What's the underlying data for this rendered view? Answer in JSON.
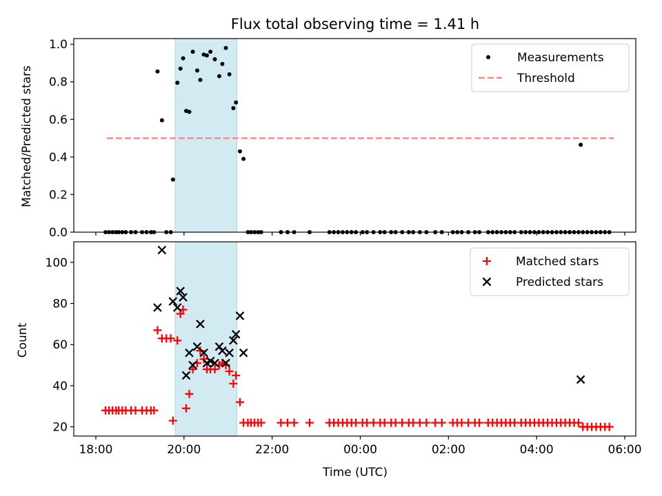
{
  "chart_data": [
    {
      "type": "scatter",
      "title": "Flux total observing time = 1.41 h",
      "xlabel": "",
      "ylabel": "Matched/Predicted stars",
      "xlim": [
        17.5,
        30.25
      ],
      "ylim": [
        0,
        1.03
      ],
      "yticks": [
        0,
        0.2,
        0.4,
        0.6,
        0.8,
        1.0
      ],
      "ytick_labels": [
        "0.0",
        "0.2",
        "0.4",
        "0.6",
        "0.8",
        "1.0"
      ],
      "highlight_span": [
        19.8,
        21.2
      ],
      "highlight_color": "#add8e6",
      "legend_position": "upper right",
      "legend": [
        {
          "label": "Measurements",
          "marker": "dot",
          "color": "#000000"
        },
        {
          "label": "Threshold",
          "marker": "dashed-line",
          "color": "#ff7f7f"
        }
      ],
      "threshold": {
        "y": 0.5,
        "x_range": [
          18.25,
          29.75
        ]
      },
      "series": [
        {
          "name": "Measurements",
          "color": "#000000",
          "points": [
            [
              19.4,
              0.855
            ],
            [
              19.5,
              0.595
            ],
            [
              19.75,
              0.28
            ],
            [
              19.85,
              0.795
            ],
            [
              19.92,
              0.87
            ],
            [
              19.98,
              0.925
            ],
            [
              20.05,
              0.645
            ],
            [
              20.12,
              0.64
            ],
            [
              20.2,
              0.96
            ],
            [
              20.3,
              0.86
            ],
            [
              20.37,
              0.81
            ],
            [
              20.45,
              0.945
            ],
            [
              20.52,
              0.94
            ],
            [
              20.6,
              0.96
            ],
            [
              20.7,
              0.92
            ],
            [
              20.8,
              0.83
            ],
            [
              20.87,
              0.895
            ],
            [
              20.95,
              0.98
            ],
            [
              21.03,
              0.84
            ],
            [
              21.12,
              0.66
            ],
            [
              21.18,
              0.69
            ],
            [
              21.27,
              0.43
            ],
            [
              21.35,
              0.39
            ],
            [
              29.0,
              0.465
            ],
            [
              18.22,
              0.0
            ],
            [
              18.3,
              0.0
            ],
            [
              18.38,
              0.0
            ],
            [
              18.46,
              0.0
            ],
            [
              18.52,
              0.0
            ],
            [
              18.6,
              0.0
            ],
            [
              18.68,
              0.0
            ],
            [
              18.8,
              0.0
            ],
            [
              18.9,
              0.0
            ],
            [
              19.05,
              0.0
            ],
            [
              19.15,
              0.0
            ],
            [
              19.25,
              0.0
            ],
            [
              19.32,
              0.0
            ],
            [
              19.6,
              0.0
            ],
            [
              19.7,
              0.0
            ],
            [
              21.45,
              0.0
            ],
            [
              21.52,
              0.0
            ],
            [
              21.6,
              0.0
            ],
            [
              21.68,
              0.0
            ],
            [
              21.75,
              0.0
            ],
            [
              22.2,
              0.0
            ],
            [
              22.35,
              0.0
            ],
            [
              22.5,
              0.0
            ],
            [
              22.85,
              0.0
            ],
            [
              23.3,
              0.0
            ],
            [
              23.4,
              0.0
            ],
            [
              23.5,
              0.0
            ],
            [
              23.6,
              0.0
            ],
            [
              23.7,
              0.0
            ],
            [
              23.8,
              0.0
            ],
            [
              23.9,
              0.0
            ],
            [
              24.05,
              0.0
            ],
            [
              24.15,
              0.0
            ],
            [
              24.3,
              0.0
            ],
            [
              24.45,
              0.0
            ],
            [
              24.55,
              0.0
            ],
            [
              24.7,
              0.0
            ],
            [
              24.8,
              0.0
            ],
            [
              24.95,
              0.0
            ],
            [
              25.1,
              0.0
            ],
            [
              25.2,
              0.0
            ],
            [
              25.35,
              0.0
            ],
            [
              25.5,
              0.0
            ],
            [
              25.7,
              0.0
            ],
            [
              25.85,
              0.0
            ],
            [
              26.1,
              0.0
            ],
            [
              26.2,
              0.0
            ],
            [
              26.3,
              0.0
            ],
            [
              26.45,
              0.0
            ],
            [
              26.6,
              0.0
            ],
            [
              26.7,
              0.0
            ],
            [
              26.9,
              0.0
            ],
            [
              27.0,
              0.0
            ],
            [
              27.1,
              0.0
            ],
            [
              27.2,
              0.0
            ],
            [
              27.3,
              0.0
            ],
            [
              27.4,
              0.0
            ],
            [
              27.5,
              0.0
            ],
            [
              27.65,
              0.0
            ],
            [
              27.75,
              0.0
            ],
            [
              27.85,
              0.0
            ],
            [
              27.95,
              0.0
            ],
            [
              28.05,
              0.0
            ],
            [
              28.15,
              0.0
            ],
            [
              28.25,
              0.0
            ],
            [
              28.35,
              0.0
            ],
            [
              28.45,
              0.0
            ],
            [
              28.55,
              0.0
            ],
            [
              28.65,
              0.0
            ],
            [
              28.75,
              0.0
            ],
            [
              28.85,
              0.0
            ],
            [
              28.95,
              0.0
            ],
            [
              29.05,
              0.0
            ],
            [
              29.15,
              0.0
            ],
            [
              29.25,
              0.0
            ],
            [
              29.35,
              0.0
            ],
            [
              29.45,
              0.0
            ],
            [
              29.55,
              0.0
            ],
            [
              29.65,
              0.0
            ]
          ]
        }
      ]
    },
    {
      "type": "scatter",
      "title": "",
      "xlabel": "Time (UTC)",
      "ylabel": "Count",
      "xlim": [
        17.5,
        30.25
      ],
      "ylim": [
        15.5,
        110
      ],
      "xticks": [
        18,
        20,
        22,
        24,
        26,
        28,
        30
      ],
      "xtick_labels": [
        "18:00",
        "20:00",
        "22:00",
        "00:00",
        "02:00",
        "04:00",
        "06:00"
      ],
      "yticks": [
        20,
        40,
        60,
        80,
        100
      ],
      "ytick_labels": [
        "20",
        "40",
        "60",
        "80",
        "100"
      ],
      "highlight_span": [
        19.8,
        21.2
      ],
      "highlight_color": "#add8e6",
      "legend_position": "upper right",
      "legend": [
        {
          "label": "Matched stars",
          "marker": "plus",
          "color": "#ff0000"
        },
        {
          "label": "Predicted stars",
          "marker": "x",
          "color": "#000000"
        }
      ],
      "series": [
        {
          "name": "Matched stars",
          "color": "#ff0000",
          "points": [
            [
              18.22,
              28
            ],
            [
              18.3,
              28
            ],
            [
              18.38,
              28
            ],
            [
              18.46,
              28
            ],
            [
              18.52,
              28
            ],
            [
              18.6,
              28
            ],
            [
              18.68,
              28
            ],
            [
              18.8,
              28
            ],
            [
              18.9,
              28
            ],
            [
              19.05,
              28
            ],
            [
              19.15,
              28
            ],
            [
              19.25,
              28
            ],
            [
              19.32,
              28
            ],
            [
              19.4,
              67
            ],
            [
              19.5,
              63
            ],
            [
              19.6,
              63
            ],
            [
              19.7,
              63
            ],
            [
              19.75,
              23
            ],
            [
              19.85,
              62
            ],
            [
              19.92,
              75
            ],
            [
              19.98,
              77
            ],
            [
              20.05,
              29
            ],
            [
              20.12,
              36
            ],
            [
              20.2,
              48
            ],
            [
              20.3,
              51
            ],
            [
              20.37,
              57
            ],
            [
              20.45,
              53
            ],
            [
              20.52,
              48
            ],
            [
              20.6,
              48
            ],
            [
              20.7,
              48
            ],
            [
              20.8,
              50
            ],
            [
              20.87,
              51
            ],
            [
              20.95,
              50
            ],
            [
              21.03,
              47
            ],
            [
              21.12,
              41
            ],
            [
              21.18,
              45
            ],
            [
              21.27,
              32
            ],
            [
              21.35,
              22
            ],
            [
              21.45,
              22
            ],
            [
              21.52,
              22
            ],
            [
              21.6,
              22
            ],
            [
              21.68,
              22
            ],
            [
              21.75,
              22
            ],
            [
              22.2,
              22
            ],
            [
              22.35,
              22
            ],
            [
              22.5,
              22
            ],
            [
              22.85,
              22
            ],
            [
              23.3,
              22
            ],
            [
              23.4,
              22
            ],
            [
              23.5,
              22
            ],
            [
              23.6,
              22
            ],
            [
              23.7,
              22
            ],
            [
              23.8,
              22
            ],
            [
              23.9,
              22
            ],
            [
              24.05,
              22
            ],
            [
              24.15,
              22
            ],
            [
              24.3,
              22
            ],
            [
              24.45,
              22
            ],
            [
              24.55,
              22
            ],
            [
              24.7,
              22
            ],
            [
              24.8,
              22
            ],
            [
              24.95,
              22
            ],
            [
              25.1,
              22
            ],
            [
              25.2,
              22
            ],
            [
              25.35,
              22
            ],
            [
              25.5,
              22
            ],
            [
              25.7,
              22
            ],
            [
              25.85,
              22
            ],
            [
              26.1,
              22
            ],
            [
              26.2,
              22
            ],
            [
              26.3,
              22
            ],
            [
              26.45,
              22
            ],
            [
              26.6,
              22
            ],
            [
              26.7,
              22
            ],
            [
              26.9,
              22
            ],
            [
              27.0,
              22
            ],
            [
              27.1,
              22
            ],
            [
              27.2,
              22
            ],
            [
              27.3,
              22
            ],
            [
              27.4,
              22
            ],
            [
              27.5,
              22
            ],
            [
              27.65,
              22
            ],
            [
              27.75,
              22
            ],
            [
              27.85,
              22
            ],
            [
              27.95,
              22
            ],
            [
              28.05,
              22
            ],
            [
              28.15,
              22
            ],
            [
              28.25,
              22
            ],
            [
              28.35,
              22
            ],
            [
              28.45,
              22
            ],
            [
              28.55,
              22
            ],
            [
              28.65,
              22
            ],
            [
              28.75,
              22
            ],
            [
              28.85,
              22
            ],
            [
              28.95,
              22
            ],
            [
              29.05,
              20
            ],
            [
              29.15,
              20
            ],
            [
              29.25,
              20
            ],
            [
              29.35,
              20
            ],
            [
              29.45,
              20
            ],
            [
              29.55,
              20
            ],
            [
              29.65,
              20
            ]
          ]
        },
        {
          "name": "Predicted stars",
          "color": "#000000",
          "points": [
            [
              19.4,
              78
            ],
            [
              19.5,
              106
            ],
            [
              19.75,
              81
            ],
            [
              19.85,
              78
            ],
            [
              19.92,
              86
            ],
            [
              19.98,
              83
            ],
            [
              20.05,
              45
            ],
            [
              20.12,
              56
            ],
            [
              20.2,
              50
            ],
            [
              20.3,
              59
            ],
            [
              20.37,
              70
            ],
            [
              20.45,
              56
            ],
            [
              20.52,
              51
            ],
            [
              20.6,
              52
            ],
            [
              20.7,
              51
            ],
            [
              20.8,
              59
            ],
            [
              20.87,
              57
            ],
            [
              20.95,
              51
            ],
            [
              21.03,
              56
            ],
            [
              21.12,
              62
            ],
            [
              21.18,
              65
            ],
            [
              21.27,
              74
            ],
            [
              21.35,
              56
            ],
            [
              29.0,
              43
            ]
          ]
        }
      ]
    }
  ]
}
